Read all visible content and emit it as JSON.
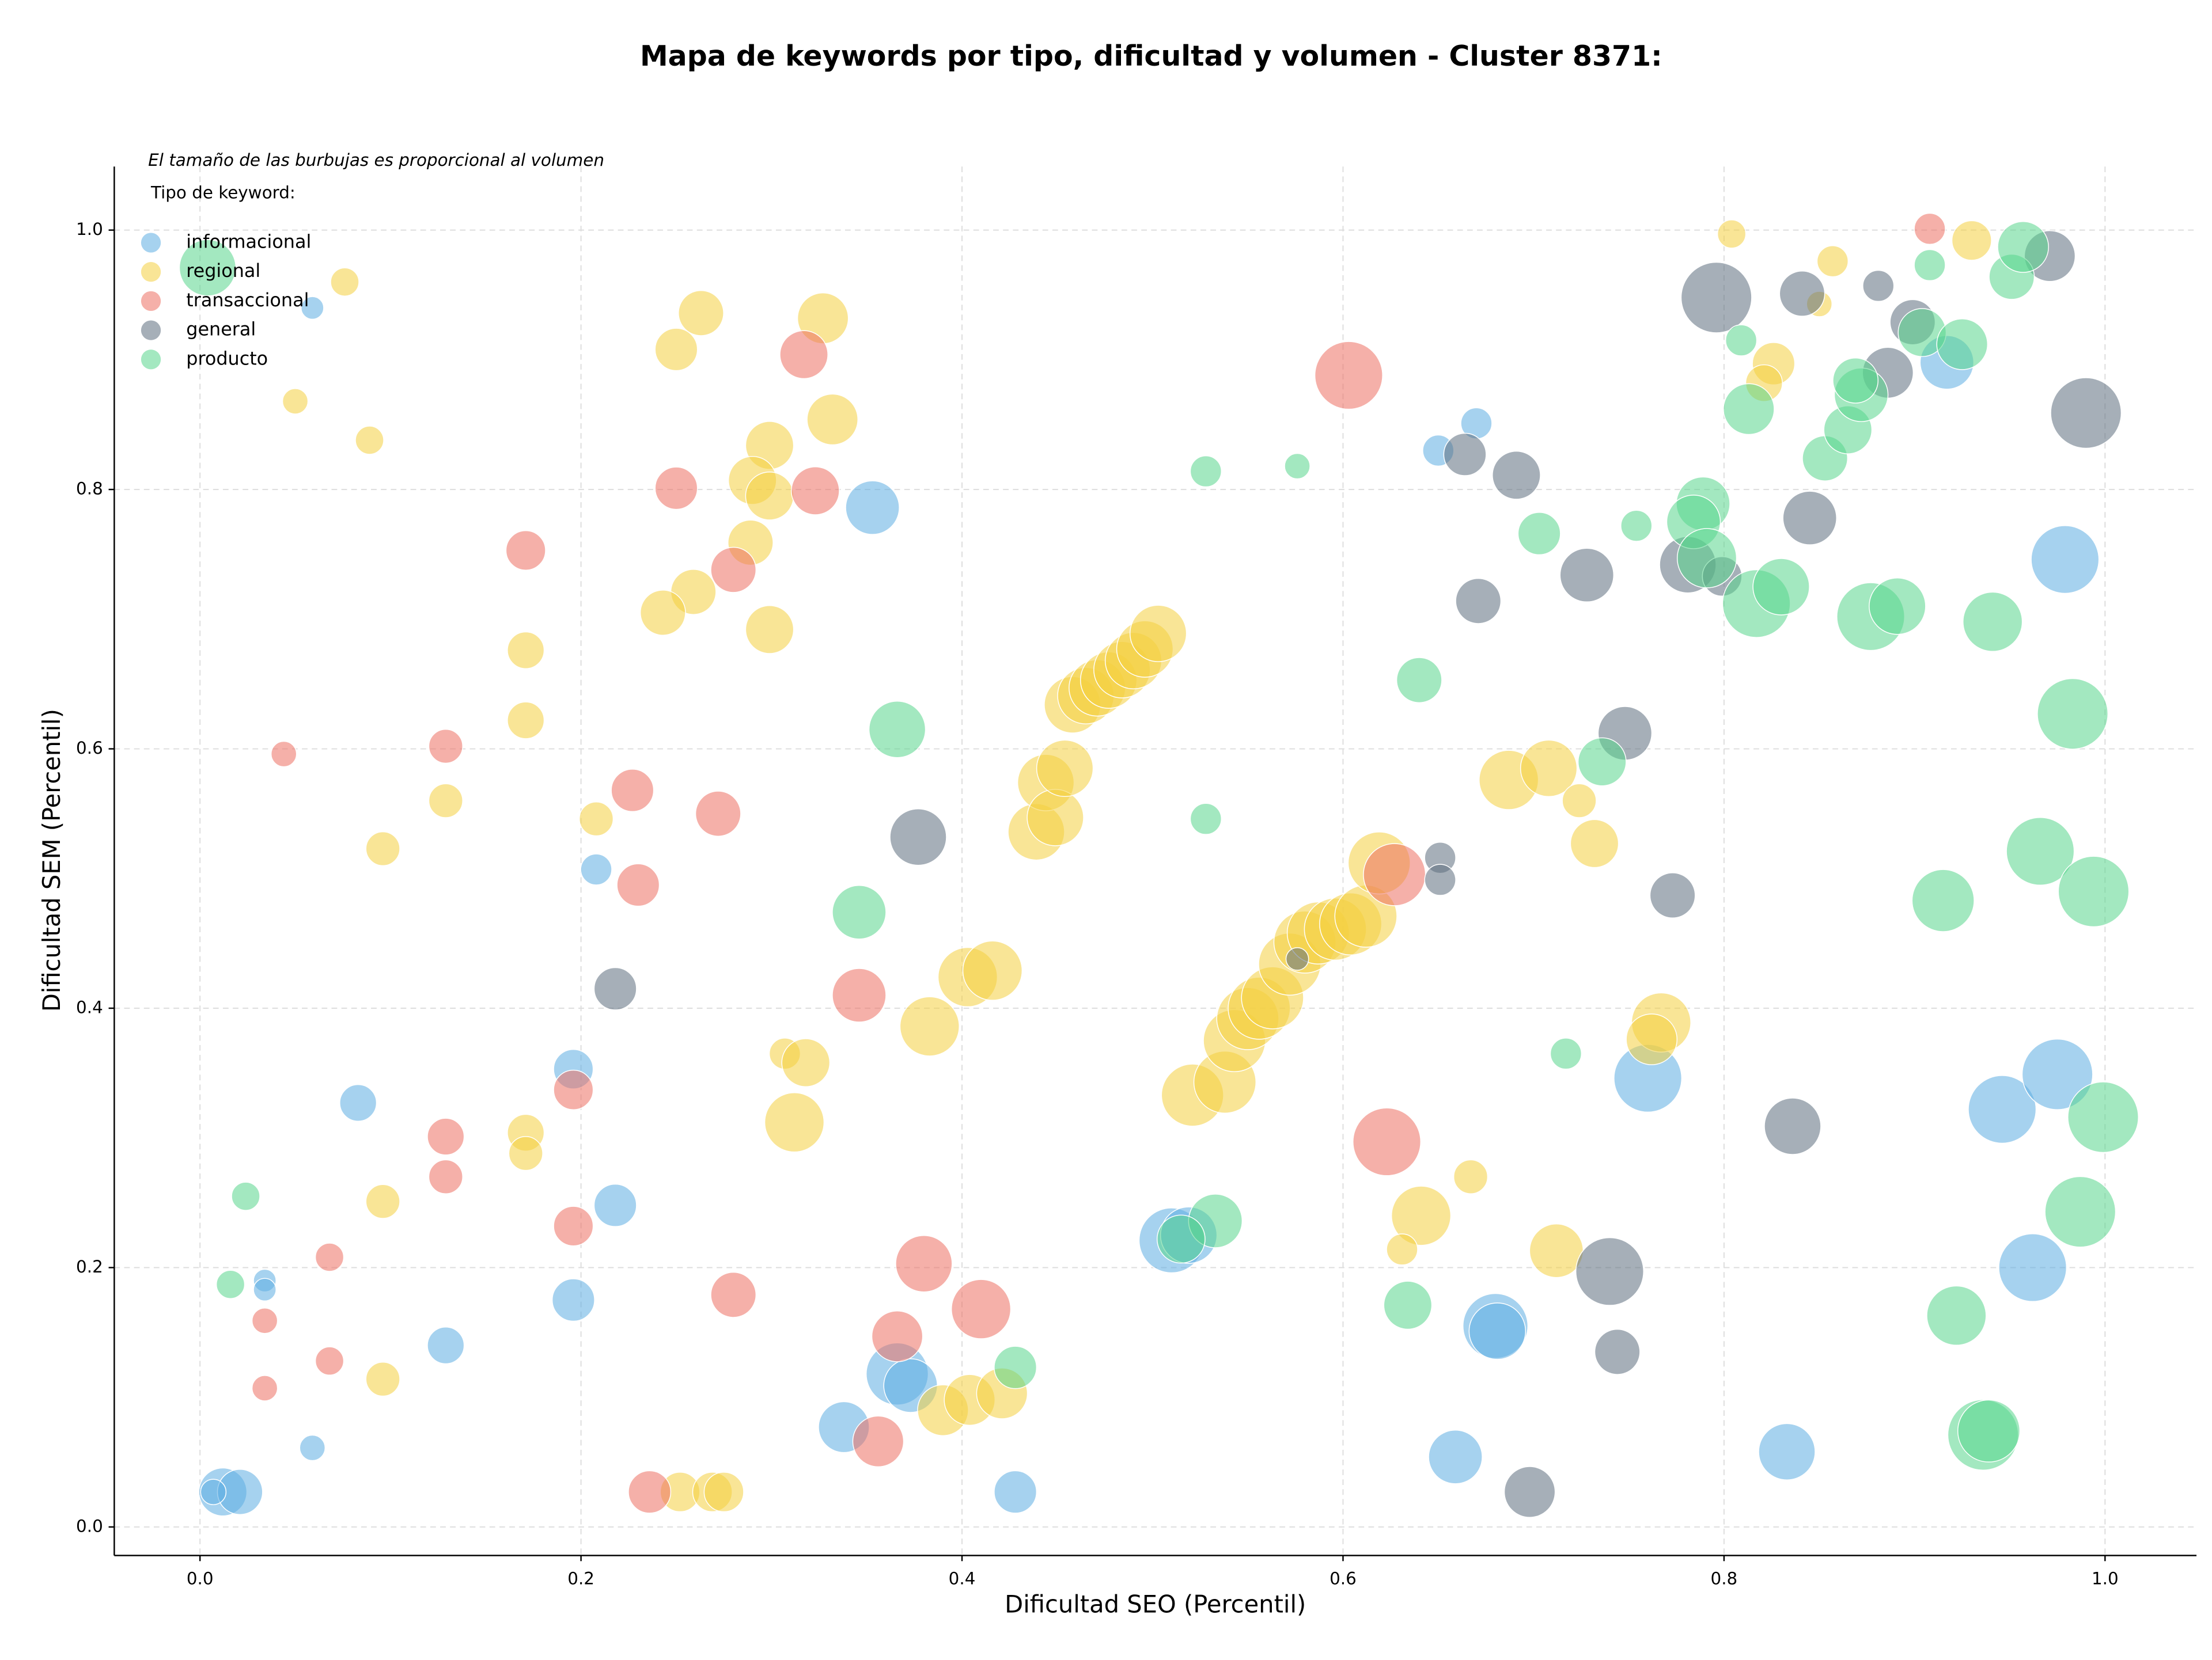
{
  "chart_data": {
    "type": "scatter",
    "title": "Mapa de keywords por tipo, dificultad y volumen - Cluster 8371:",
    "note": "El tamaño de las burbujas es proporcional al volumen",
    "legend_title": "Tipo de keyword:",
    "xlabel": "Dificultad SEO (Percentil)",
    "ylabel": "Dificultad SEM (Percentil)",
    "xlim": [
      -0.045,
      1.048
    ],
    "ylim": [
      -0.022,
      1.049
    ],
    "xticks": [
      {
        "value": 0,
        "label": "0.0"
      },
      0.2,
      0.4,
      0.6,
      0.8,
      {
        "value": 1,
        "label": "1.0"
      }
    ],
    "yticks": [
      {
        "value": 0,
        "label": "0.0"
      },
      0.2,
      0.4,
      0.6,
      0.8,
      {
        "value": 1,
        "label": "1.0"
      }
    ],
    "grid": true,
    "legend": "upper left",
    "series": [
      {
        "name": "informacional",
        "color": "#5dade2",
        "x": [
          0.059,
          0.353,
          0.67,
          0.65,
          0.979,
          0.917,
          0.208,
          0.196,
          0.083,
          0.218,
          0.196,
          0.129,
          0.034,
          0.034,
          0.059,
          0.012,
          0.021,
          0.007,
          0.338,
          0.366,
          0.373,
          0.428,
          0.51,
          0.519,
          0.659,
          0.68,
          0.681,
          0.76,
          0.833,
          0.946,
          0.962,
          0.975
        ],
        "y": [
          0.94,
          0.786,
          0.851,
          0.83,
          0.746,
          0.898,
          0.507,
          0.353,
          0.327,
          0.248,
          0.175,
          0.14,
          0.19,
          0.183,
          0.061,
          0.027,
          0.027,
          0.027,
          0.077,
          0.118,
          0.109,
          0.027,
          0.221,
          0.225,
          0.054,
          0.155,
          0.151,
          0.346,
          0.058,
          0.322,
          0.2,
          0.349
        ],
        "sizes": [
          8,
          19,
          11,
          11,
          24,
          19,
          11,
          14,
          13,
          15,
          15,
          13,
          8,
          8,
          9,
          17,
          16,
          9,
          18,
          22,
          19,
          15,
          23,
          20,
          19,
          23,
          20,
          24,
          20,
          24,
          24,
          25
        ]
      },
      {
        "name": "regional",
        "color": "#f4d03f",
        "x": [
          0.076,
          0.05,
          0.089,
          0.25,
          0.263,
          0.327,
          0.332,
          0.299,
          0.29,
          0.299,
          0.289,
          0.259,
          0.243,
          0.299,
          0.171,
          0.171,
          0.129,
          0.096,
          0.208,
          0.171,
          0.171,
          0.096,
          0.096,
          0.307,
          0.318,
          0.312,
          0.383,
          0.403,
          0.416,
          0.39,
          0.404,
          0.421,
          0.252,
          0.269,
          0.275,
          0.439,
          0.444,
          0.449,
          0.454,
          0.458,
          0.465,
          0.471,
          0.477,
          0.484,
          0.49,
          0.496,
          0.503,
          0.521,
          0.538,
          0.543,
          0.55,
          0.556,
          0.563,
          0.572,
          0.58,
          0.587,
          0.596,
          0.604,
          0.612,
          0.619,
          0.641,
          0.631,
          0.667,
          0.687,
          0.708,
          0.724,
          0.732,
          0.712,
          0.767,
          0.762,
          0.804,
          0.857,
          0.85,
          0.826,
          0.821,
          0.93
        ],
        "y": [
          0.96,
          0.868,
          0.838,
          0.908,
          0.936,
          0.932,
          0.854,
          0.834,
          0.807,
          0.795,
          0.759,
          0.721,
          0.705,
          0.692,
          0.676,
          0.622,
          0.56,
          0.523,
          0.546,
          0.304,
          0.288,
          0.251,
          0.114,
          0.365,
          0.358,
          0.312,
          0.386,
          0.424,
          0.429,
          0.09,
          0.098,
          0.103,
          0.027,
          0.027,
          0.027,
          0.536,
          0.574,
          0.547,
          0.585,
          0.634,
          0.641,
          0.647,
          0.653,
          0.661,
          0.668,
          0.677,
          0.689,
          0.333,
          0.343,
          0.375,
          0.392,
          0.4,
          0.408,
          0.434,
          0.451,
          0.458,
          0.461,
          0.465,
          0.471,
          0.512,
          0.24,
          0.214,
          0.27,
          0.576,
          0.585,
          0.56,
          0.527,
          0.213,
          0.389,
          0.376,
          0.997,
          0.976,
          0.943,
          0.897,
          0.882,
          0.992
        ],
        "sizes": [
          10,
          9,
          10,
          15,
          16,
          18,
          18,
          17,
          17,
          17,
          16,
          16,
          16,
          17,
          13,
          13,
          12,
          12,
          12,
          13,
          12,
          12,
          12,
          11,
          17,
          21,
          21,
          21,
          21,
          18,
          18,
          18,
          14,
          14,
          14,
          20,
          20,
          20,
          20,
          20,
          20,
          20,
          20,
          20,
          20,
          20,
          20,
          22,
          22,
          22,
          22,
          22,
          22,
          22,
          22,
          22,
          22,
          22,
          22,
          22,
          21,
          11,
          12,
          21,
          20,
          12,
          17,
          19,
          21,
          18,
          10,
          11,
          9,
          15,
          13,
          14
        ]
      },
      {
        "name": "transaccional",
        "color": "#ec7063",
        "x": [
          0.317,
          0.25,
          0.323,
          0.28,
          0.171,
          0.603,
          0.044,
          0.129,
          0.227,
          0.272,
          0.23,
          0.346,
          0.196,
          0.129,
          0.129,
          0.196,
          0.068,
          0.034,
          0.034,
          0.068,
          0.28,
          0.38,
          0.41,
          0.366,
          0.356,
          0.236,
          0.623,
          0.627,
          0.908
        ],
        "y": [
          0.904,
          0.801,
          0.799,
          0.738,
          0.753,
          0.888,
          0.596,
          0.602,
          0.568,
          0.55,
          0.495,
          0.41,
          0.337,
          0.301,
          0.27,
          0.232,
          0.208,
          0.159,
          0.107,
          0.128,
          0.179,
          0.203,
          0.168,
          0.147,
          0.066,
          0.027,
          0.297,
          0.503,
          1.001
        ],
        "sizes": [
          17,
          15,
          17,
          16,
          14,
          24,
          9,
          12,
          15,
          16,
          15,
          19,
          14,
          13,
          12,
          14,
          10,
          9,
          9,
          10,
          16,
          20,
          21,
          18,
          18,
          15,
          24,
          22,
          11
        ]
      },
      {
        "name": "general",
        "color": "#5d6d7e",
        "x": [
          0.377,
          0.218,
          0.576,
          0.651,
          0.651,
          0.664,
          0.691,
          0.671,
          0.728,
          0.748,
          0.773,
          0.74,
          0.744,
          0.698,
          0.796,
          0.781,
          0.799,
          0.841,
          0.845,
          0.881,
          0.886,
          0.899,
          0.971,
          0.99,
          0.836
        ],
        "y": [
          0.532,
          0.415,
          0.438,
          0.516,
          0.499,
          0.827,
          0.811,
          0.714,
          0.734,
          0.612,
          0.487,
          0.197,
          0.135,
          0.027,
          0.948,
          0.742,
          0.733,
          0.951,
          0.778,
          0.957,
          0.89,
          0.929,
          0.98,
          0.859,
          0.309
        ],
        "sizes": [
          20,
          15,
          8,
          11,
          11,
          15,
          17,
          16,
          19,
          19,
          16,
          24,
          16,
          18,
          25,
          20,
          14,
          16,
          19,
          11,
          18,
          16,
          18,
          25,
          20
        ]
      },
      {
        "name": "producto",
        "color": "#58d68d",
        "x": [
          0.004,
          0.024,
          0.016,
          0.366,
          0.346,
          0.528,
          0.576,
          0.528,
          0.533,
          0.515,
          0.428,
          0.64,
          0.634,
          0.703,
          0.754,
          0.736,
          0.717,
          0.789,
          0.784,
          0.791,
          0.817,
          0.83,
          0.813,
          0.809,
          0.853,
          0.865,
          0.872,
          0.869,
          0.877,
          0.891,
          0.904,
          0.925,
          0.908,
          0.951,
          0.957,
          0.941,
          0.983,
          0.966,
          0.915,
          0.994,
          0.999,
          0.987,
          0.922,
          0.936,
          0.939
        ],
        "y": [
          0.971,
          0.255,
          0.187,
          0.615,
          0.474,
          0.814,
          0.818,
          0.546,
          0.236,
          0.222,
          0.123,
          0.653,
          0.171,
          0.766,
          0.772,
          0.59,
          0.365,
          0.789,
          0.775,
          0.747,
          0.712,
          0.725,
          0.862,
          0.915,
          0.824,
          0.846,
          0.873,
          0.884,
          0.702,
          0.71,
          0.921,
          0.912,
          0.973,
          0.964,
          0.987,
          0.698,
          0.627,
          0.521,
          0.483,
          0.49,
          0.316,
          0.243,
          0.163,
          0.071,
          0.074
        ],
        "sizes": [
          20,
          10,
          10,
          20,
          19,
          11,
          9,
          11,
          19,
          17,
          15,
          16,
          17,
          15,
          11,
          17,
          11,
          19,
          19,
          21,
          24,
          20,
          18,
          11,
          16,
          17,
          19,
          16,
          24,
          20,
          17,
          18,
          11,
          16,
          18,
          21,
          25,
          24,
          22,
          25,
          25,
          25,
          21,
          25,
          22
        ]
      }
    ]
  }
}
